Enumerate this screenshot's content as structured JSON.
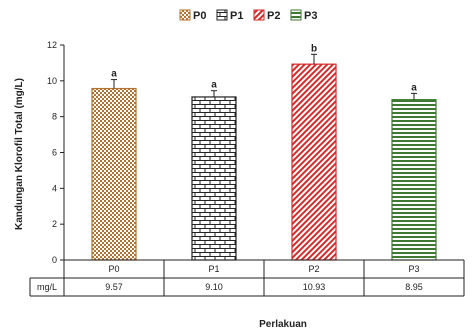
{
  "chart_data": {
    "type": "bar",
    "title": "",
    "xlabel": "Perlakuan",
    "ylabel": "Kandungan Klorofil Total (mg/L)",
    "ylim": [
      0,
      12
    ],
    "yticks": [
      0,
      2,
      4,
      6,
      8,
      10,
      12
    ],
    "grid": false,
    "legend_position": "top-center",
    "categories": [
      "P0",
      "P1",
      "P2",
      "P3"
    ],
    "values": [
      9.57,
      9.1,
      10.93,
      8.95
    ],
    "errors": [
      0.5,
      0.35,
      0.55,
      0.35
    ],
    "significance": [
      "a",
      "a",
      "b",
      "a"
    ],
    "legend": [
      "P0",
      "P1",
      "P2",
      "P3"
    ],
    "table": {
      "row_label": "mg/L",
      "values": [
        "9.57",
        "9.10",
        "10.93",
        "8.95"
      ]
    },
    "colors": [
      "#b5712d",
      "#222222",
      "#d92a2a",
      "#3e7a32"
    ]
  }
}
